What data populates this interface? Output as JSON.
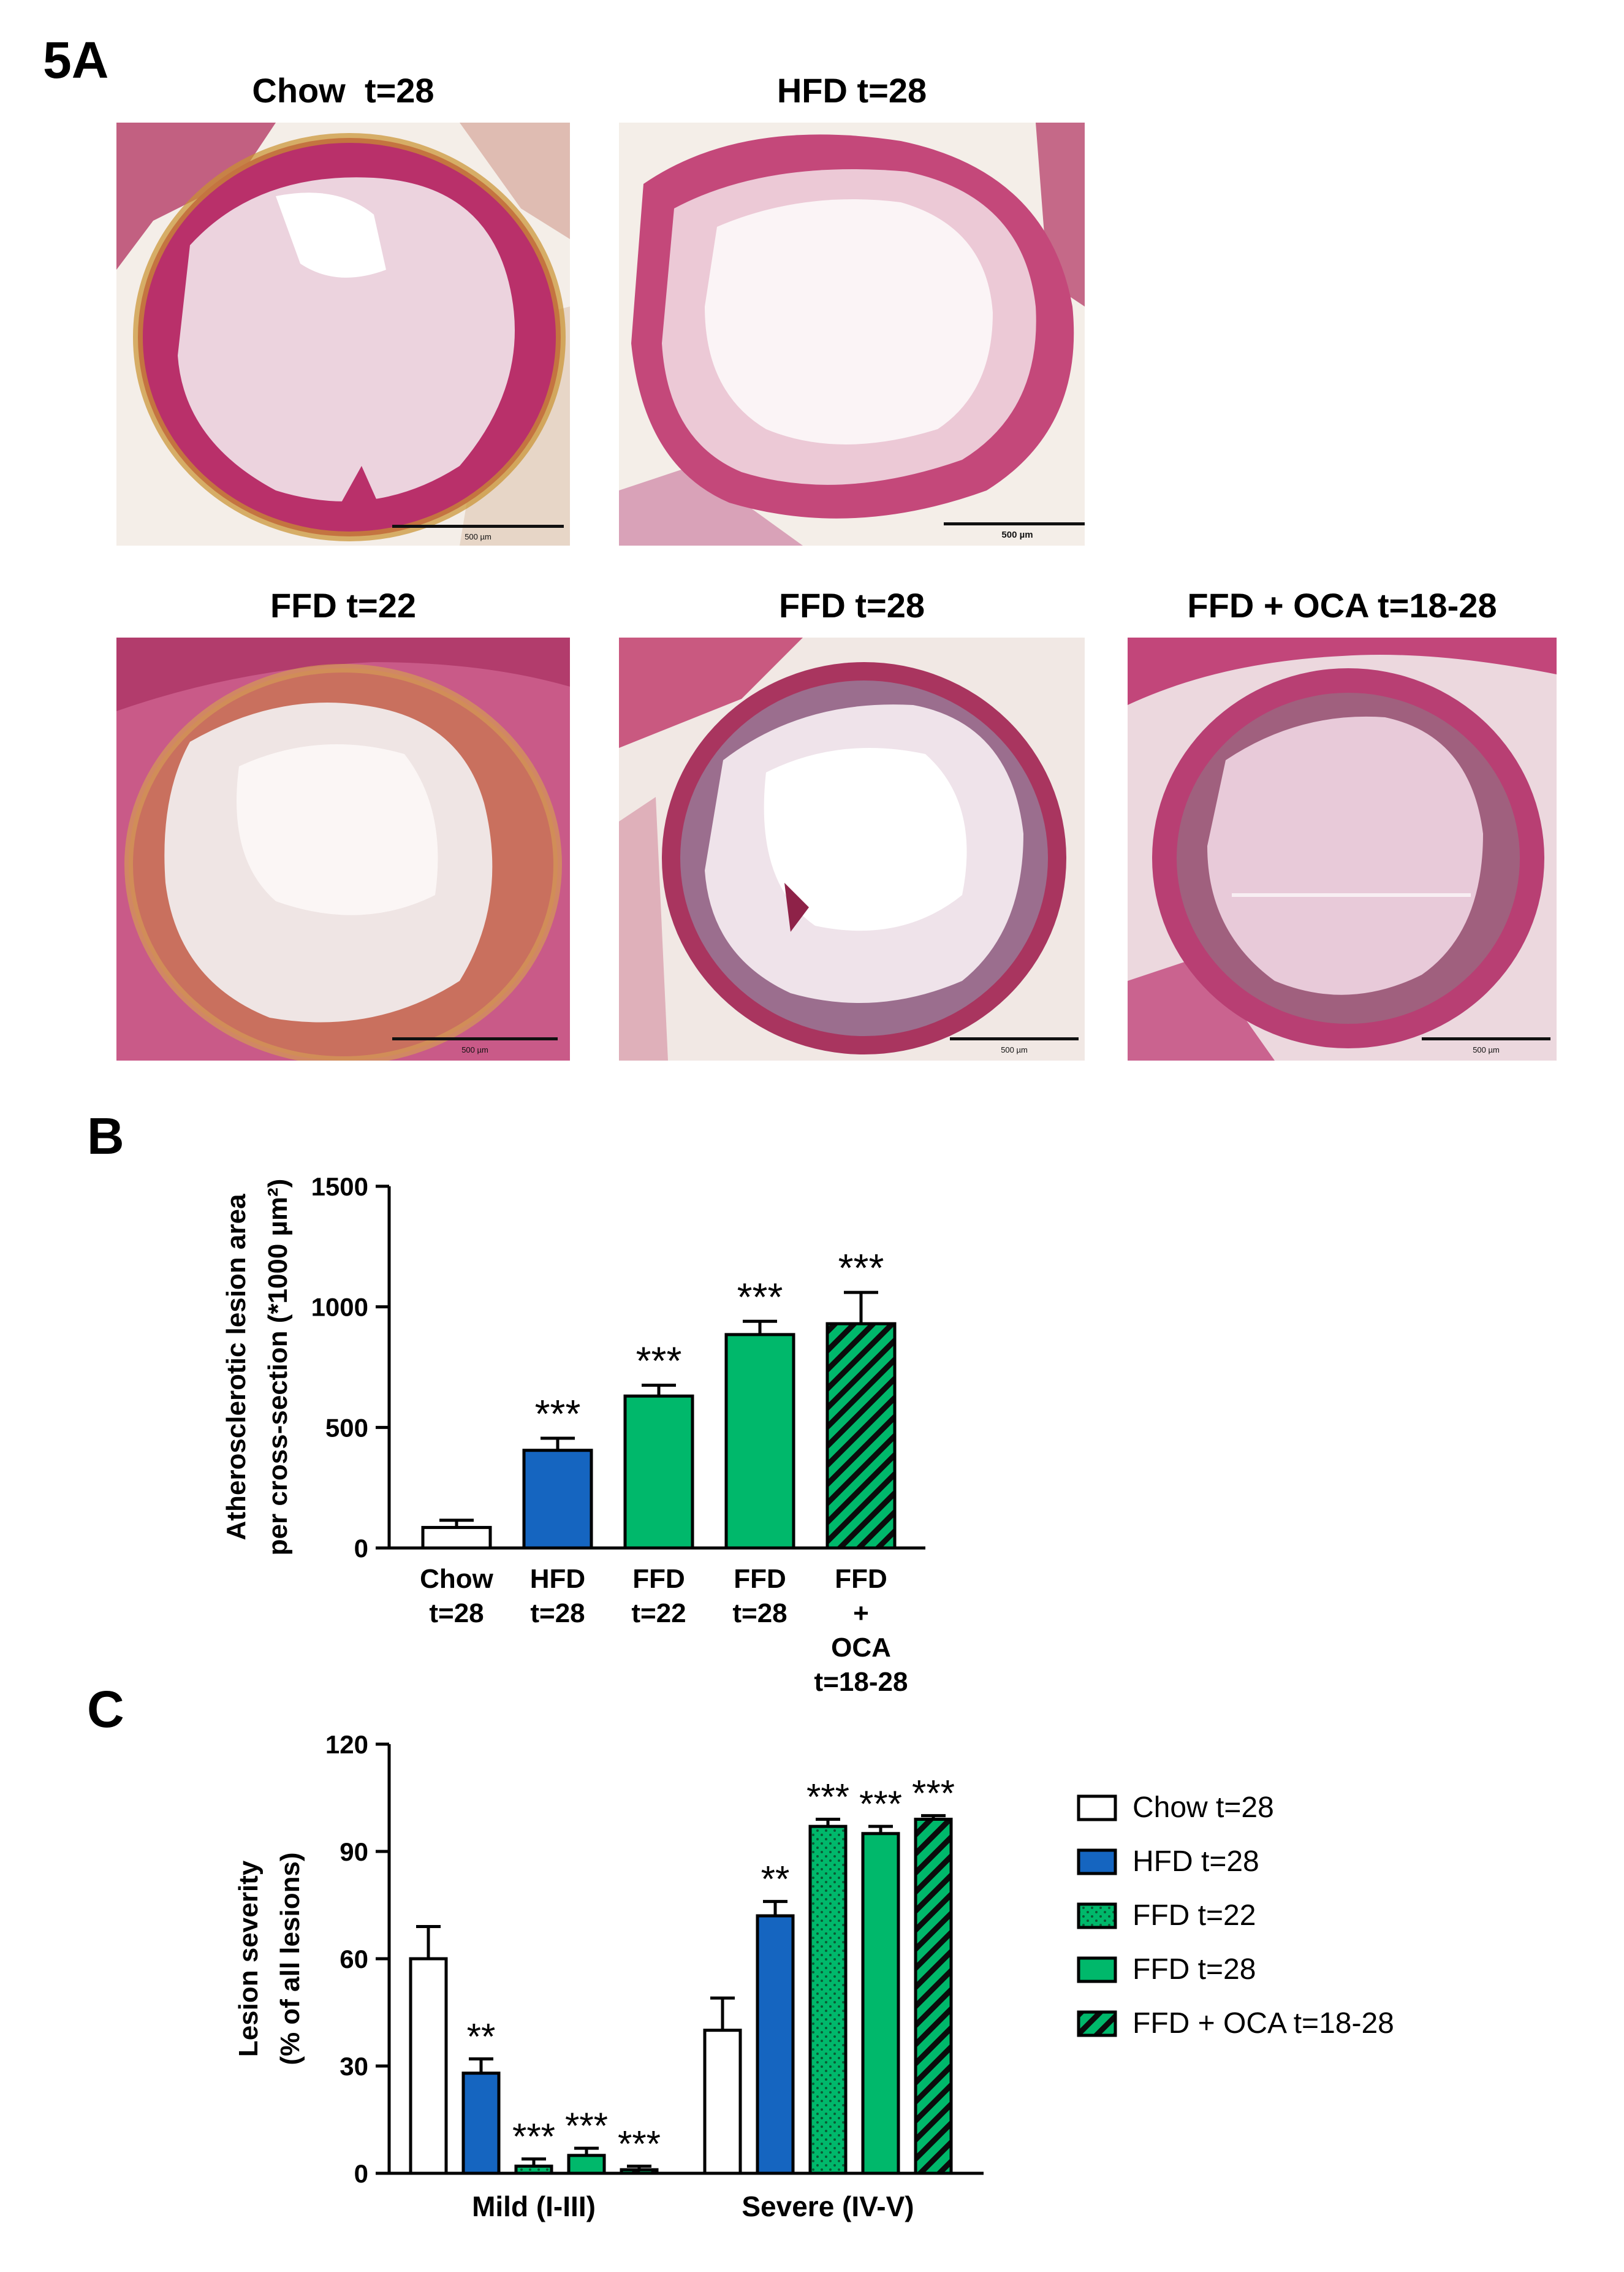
{
  "panel_labels": {
    "a": "5A",
    "b": "B",
    "c": "C"
  },
  "images": [
    {
      "title": "Chow  t=28",
      "scale": "500 µm"
    },
    {
      "title": "HFD t=28",
      "scale": "500 µm"
    },
    {
      "title": "FFD t=22",
      "scale": "500 µm"
    },
    {
      "title": "FFD t=28",
      "scale": "500 µm"
    },
    {
      "title": "FFD + OCA t=18-28",
      "scale": "500 µm"
    }
  ],
  "colors": {
    "blue": "#1565c0",
    "green": "#00b86b",
    "black": "#000000",
    "white": "#ffffff"
  },
  "chart_data": [
    {
      "type": "bar",
      "panel": "B",
      "ylabel_lines": [
        "Atherosclerotic lesion area",
        "per cross-section (*1000 µm²)"
      ],
      "ylim": [
        0,
        1500
      ],
      "yticks": [
        0,
        500,
        1000,
        1500
      ],
      "categories": [
        {
          "lines": [
            "Chow",
            "t=28"
          ],
          "value": 85,
          "error": 30,
          "sig": "",
          "fill": "white"
        },
        {
          "lines": [
            "HFD",
            "t=28"
          ],
          "value": 405,
          "error": 50,
          "sig": "***",
          "fill": "blue"
        },
        {
          "lines": [
            "FFD",
            "t=22"
          ],
          "value": 630,
          "error": 45,
          "sig": "***",
          "fill": "green"
        },
        {
          "lines": [
            "FFD",
            "t=28"
          ],
          "value": 885,
          "error": 55,
          "sig": "***",
          "fill": "green"
        },
        {
          "lines": [
            "FFD",
            "+",
            "OCA",
            "t=18-28"
          ],
          "value": 930,
          "error": 130,
          "sig": "***",
          "fill": "green-hatched"
        }
      ]
    },
    {
      "type": "bar",
      "panel": "C",
      "ylabel_lines": [
        "Lesion severity",
        "(% of all lesions)"
      ],
      "ylim": [
        0,
        120
      ],
      "yticks": [
        0,
        30,
        60,
        90,
        120
      ],
      "categories": [
        "Mild (I-III)",
        "Severe (IV-V)"
      ],
      "series": [
        {
          "name": "Chow t=28",
          "fill": "white",
          "values": [
            60,
            40
          ],
          "errors": [
            9,
            9
          ],
          "sig": [
            "",
            ""
          ]
        },
        {
          "name": "HFD t=28",
          "fill": "blue",
          "values": [
            28,
            72
          ],
          "errors": [
            4,
            4
          ],
          "sig": [
            "**",
            "**"
          ]
        },
        {
          "name": "FFD t=22",
          "fill": "green-dotted",
          "values": [
            2,
            97
          ],
          "errors": [
            2,
            2
          ],
          "sig": [
            "***",
            "***"
          ]
        },
        {
          "name": "FFD t=28",
          "fill": "green",
          "values": [
            5,
            95
          ],
          "errors": [
            2,
            2
          ],
          "sig": [
            "***",
            "***"
          ]
        },
        {
          "name": "FFD + OCA t=18-28",
          "fill": "green-hatched",
          "values": [
            1,
            99
          ],
          "errors": [
            1,
            1
          ],
          "sig": [
            "***",
            "***"
          ]
        }
      ],
      "legend_position": "right"
    }
  ]
}
